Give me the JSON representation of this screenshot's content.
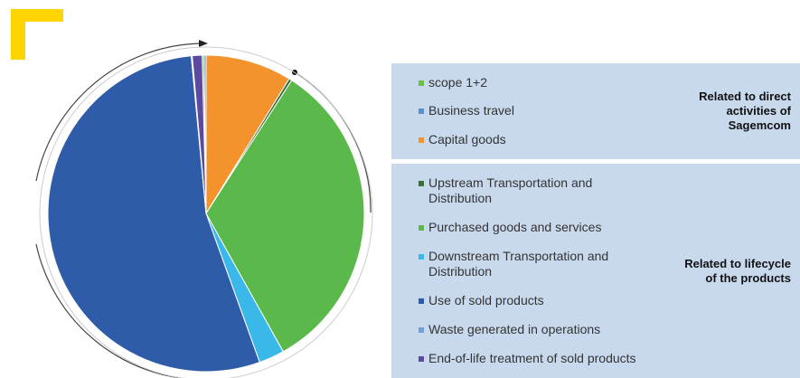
{
  "chart_data": {
    "type": "pie",
    "groups": [
      {
        "label": "Related to direct activities of Sagemcom",
        "items": [
          {
            "name": "scope 1+2",
            "color": "#6cc04a",
            "value": 0.2
          },
          {
            "name": "Business travel",
            "color": "#5b8fd0",
            "value": 0.2
          },
          {
            "name": "Capital goods",
            "color": "#f4922c",
            "value": 8.8
          }
        ]
      },
      {
        "label": "Related to lifecycle of the products",
        "items": [
          {
            "name": "Upstream Transportation and Distribution",
            "color": "#3d6e3a",
            "value": 0.3
          },
          {
            "name": "Purchased goods and services",
            "color": "#5ab94a",
            "value": 32.8
          },
          {
            "name": "Downstream Transportation and Distribution",
            "color": "#3ab8ea",
            "value": 2.6
          },
          {
            "name": "Use of sold products",
            "color": "#2f5ca8",
            "value": 54.0
          },
          {
            "name": "Waste generated in operations",
            "color": "#6fa0d8",
            "value": 0.1
          },
          {
            "name": "End-of-life treatment of sold products",
            "color": "#5b4aa0",
            "value": 1.0
          }
        ]
      }
    ]
  }
}
